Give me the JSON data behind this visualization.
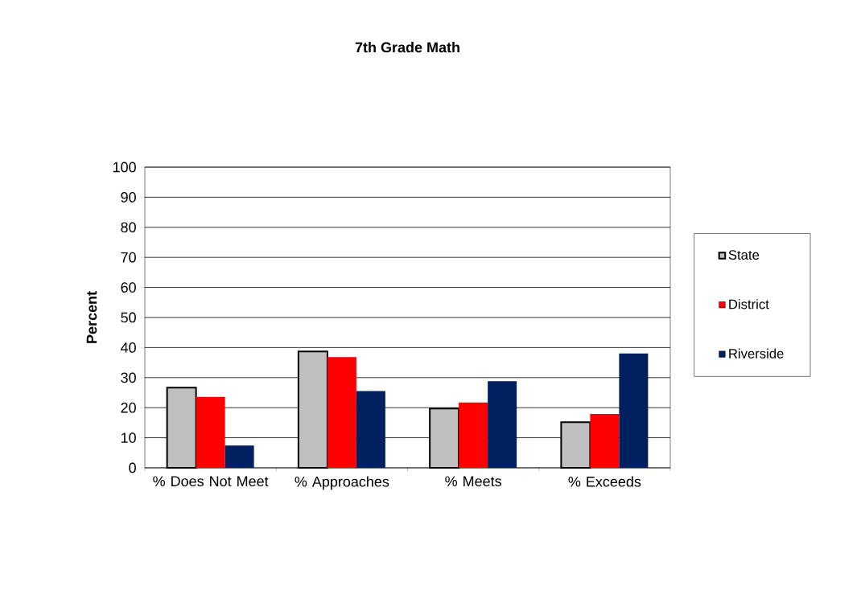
{
  "chart_data": {
    "type": "bar",
    "title": "7th Grade Math",
    "ylabel": "Percent",
    "categories": [
      "% Does Not Meet",
      "% Approaches",
      "% Meets",
      "% Exceeds"
    ],
    "series": [
      {
        "name": "State",
        "color": "#c0c0c0",
        "values": [
          26.7,
          38.7,
          19.7,
          15.2
        ]
      },
      {
        "name": "District",
        "color": "#ff0000",
        "values": [
          23.6,
          36.8,
          21.7,
          17.9
        ]
      },
      {
        "name": "Riverside",
        "color": "#002060",
        "values": [
          7.4,
          25.5,
          28.8,
          38.0
        ]
      }
    ],
    "ylim": [
      0,
      100
    ],
    "yticks": [
      0,
      10,
      20,
      30,
      40,
      50,
      60,
      70,
      80,
      90,
      100
    ],
    "grid": "y",
    "legend": "right"
  }
}
